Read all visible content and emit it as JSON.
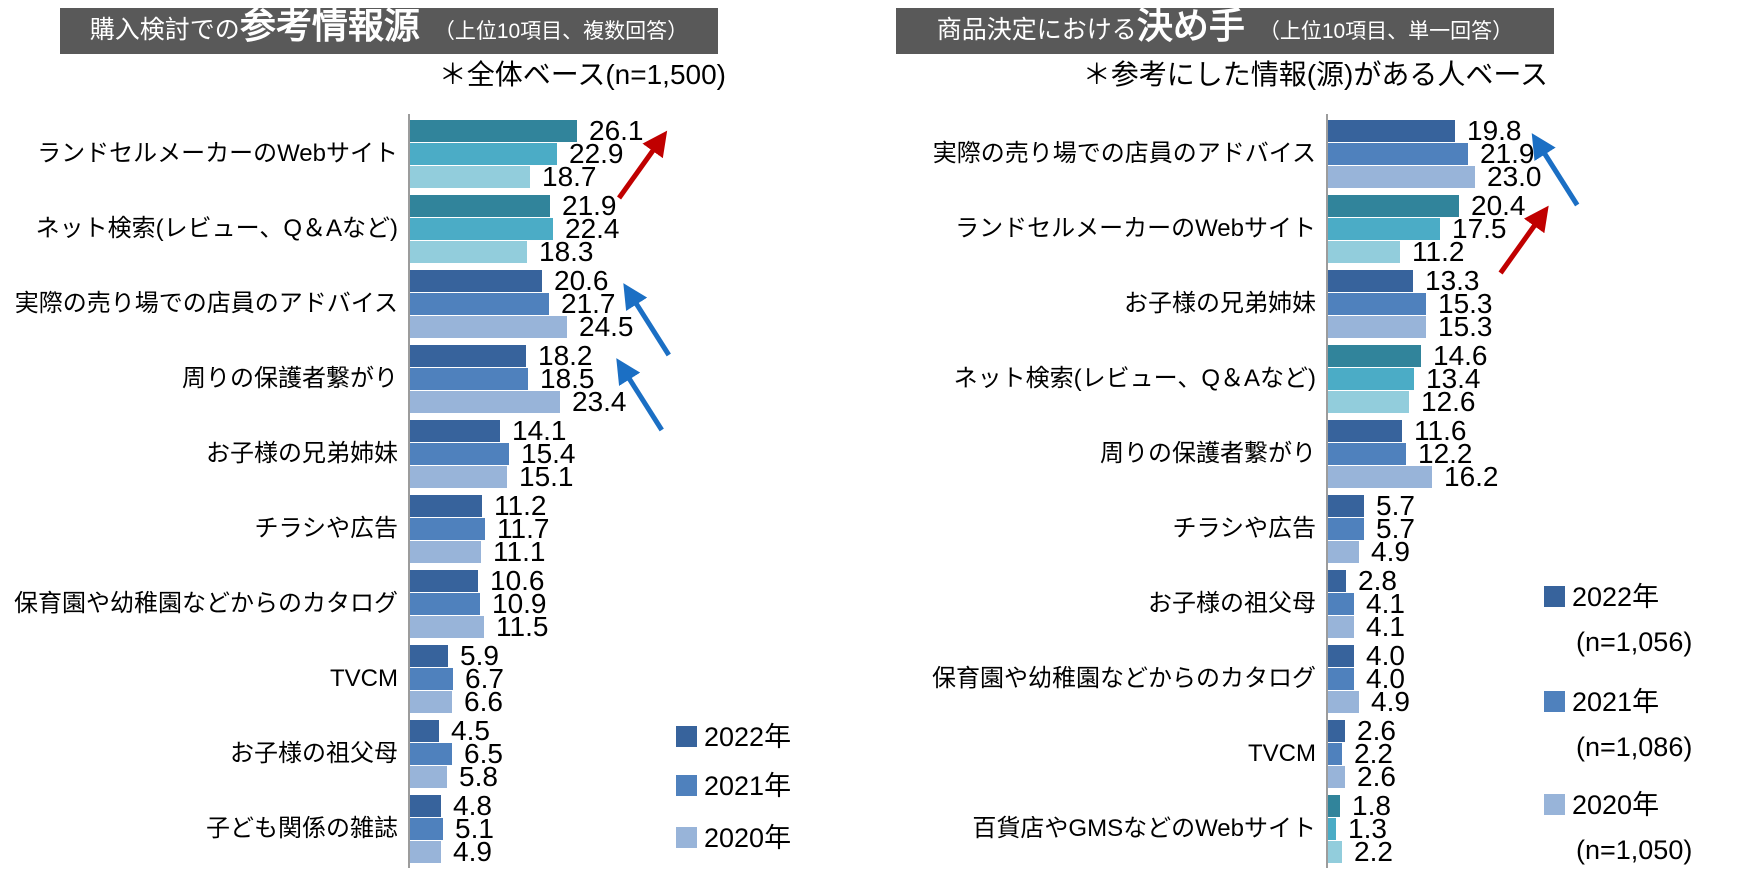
{
  "palette": {
    "blue_series": [
      "#37639C",
      "#4F81BD",
      "#98B4D9"
    ],
    "teal_series": [
      "#31849B",
      "#4BACC6",
      "#92CDDC"
    ],
    "arrow_red": "#C00000",
    "arrow_blue": "#1B6FC4",
    "title_bar_bg": "#595959",
    "title_text": "#FFFFFF",
    "axis_line": "#9C9C9C"
  },
  "chart_data": [
    {
      "type": "bar",
      "orientation": "horizontal",
      "title_prefix": "購入検討での",
      "title_emphasis": "参考情報源",
      "title_suffix": "（上位10項目、複数回答）",
      "subtitle": "＊全体ベース(n=1,500)",
      "series": [
        "2022年",
        "2021年",
        "2020年"
      ],
      "xlim": [
        0,
        30
      ],
      "grid": false,
      "legend_position": "bottom-right-inside",
      "legend": [
        {
          "label": "2022年"
        },
        {
          "label": "2021年"
        },
        {
          "label": "2020年"
        }
      ],
      "rows": [
        {
          "category": "ランドセルメーカーのWebサイト",
          "values": [
            "26.1",
            "22.9",
            "18.7"
          ],
          "palette": "teal_series",
          "arrow": {
            "color": "red",
            "direction": "up-right"
          }
        },
        {
          "category": "ネット検索(レビュー、Q＆Aなど)",
          "values": [
            "21.9",
            "22.4",
            "18.3"
          ],
          "palette": "teal_series",
          "arrow": null
        },
        {
          "category": "実際の売り場での店員のアドバイス",
          "values": [
            "20.6",
            "21.7",
            "24.5"
          ],
          "palette": "blue_series",
          "arrow": {
            "color": "blue",
            "direction": "up-left"
          }
        },
        {
          "category": "周りの保護者繋がり",
          "values": [
            "18.2",
            "18.5",
            "23.4"
          ],
          "palette": "blue_series",
          "arrow": {
            "color": "blue",
            "direction": "up-left"
          }
        },
        {
          "category": "お子様の兄弟姉妹",
          "values": [
            "14.1",
            "15.4",
            "15.1"
          ],
          "palette": "blue_series",
          "arrow": null
        },
        {
          "category": "チラシや広告",
          "values": [
            "11.2",
            "11.7",
            "11.1"
          ],
          "palette": "blue_series",
          "arrow": null
        },
        {
          "category": "保育園や幼稚園などからのカタログ",
          "values": [
            "10.6",
            "10.9",
            "11.5"
          ],
          "palette": "blue_series",
          "arrow": null
        },
        {
          "category": "TVCM",
          "values": [
            "5.9",
            "6.7",
            "6.6"
          ],
          "palette": "blue_series",
          "arrow": null
        },
        {
          "category": "お子様の祖父母",
          "values": [
            "4.5",
            "6.5",
            "5.8"
          ],
          "palette": "blue_series",
          "arrow": null
        },
        {
          "category": "子ども関係の雑誌",
          "values": [
            "4.8",
            "5.1",
            "4.9"
          ],
          "palette": "blue_series",
          "arrow": null
        }
      ]
    },
    {
      "type": "bar",
      "orientation": "horizontal",
      "title_prefix": "商品決定における",
      "title_emphasis": "決め手",
      "title_suffix": "（上位10項目、単一回答）",
      "subtitle": "＊参考にした情報(源)がある人ベース",
      "series": [
        "2022年",
        "2021年",
        "2020年"
      ],
      "xlim": [
        0,
        30
      ],
      "grid": false,
      "legend_position": "bottom-right-inside",
      "legend": [
        {
          "label": "2022年",
          "n": "(n=1,056)"
        },
        {
          "label": "2021年",
          "n": "(n=1,086)"
        },
        {
          "label": "2020年",
          "n": "(n=1,050)"
        }
      ],
      "rows": [
        {
          "category": "実際の売り場での店員のアドバイス",
          "values": [
            "19.8",
            "21.9",
            "23.0"
          ],
          "palette": "blue_series",
          "arrow": {
            "color": "blue",
            "direction": "up-left"
          }
        },
        {
          "category": "ランドセルメーカーのWebサイト",
          "values": [
            "20.4",
            "17.5",
            "11.2"
          ],
          "palette": "teal_series",
          "arrow": {
            "color": "red",
            "direction": "up-right"
          }
        },
        {
          "category": "お子様の兄弟姉妹",
          "values": [
            "13.3",
            "15.3",
            "15.3"
          ],
          "palette": "blue_series",
          "arrow": null
        },
        {
          "category": "ネット検索(レビュー、Q＆Aなど)",
          "values": [
            "14.6",
            "13.4",
            "12.6"
          ],
          "palette": "teal_series",
          "arrow": null
        },
        {
          "category": "周りの保護者繋がり",
          "values": [
            "11.6",
            "12.2",
            "16.2"
          ],
          "palette": "blue_series",
          "arrow": null
        },
        {
          "category": "チラシや広告",
          "values": [
            "5.7",
            "5.7",
            "4.9"
          ],
          "palette": "blue_series",
          "arrow": null
        },
        {
          "category": "お子様の祖父母",
          "values": [
            "2.8",
            "4.1",
            "4.1"
          ],
          "palette": "blue_series",
          "arrow": null
        },
        {
          "category": "保育園や幼稚園などからのカタログ",
          "values": [
            "4.0",
            "4.0",
            "4.9"
          ],
          "palette": "blue_series",
          "arrow": null
        },
        {
          "category": "TVCM",
          "values": [
            "2.6",
            "2.2",
            "2.6"
          ],
          "palette": "blue_series",
          "arrow": null
        },
        {
          "category": "百貨店やGMSなどのWebサイト",
          "values": [
            "1.8",
            "1.3",
            "2.2"
          ],
          "palette": "teal_series",
          "arrow": null
        }
      ]
    }
  ]
}
